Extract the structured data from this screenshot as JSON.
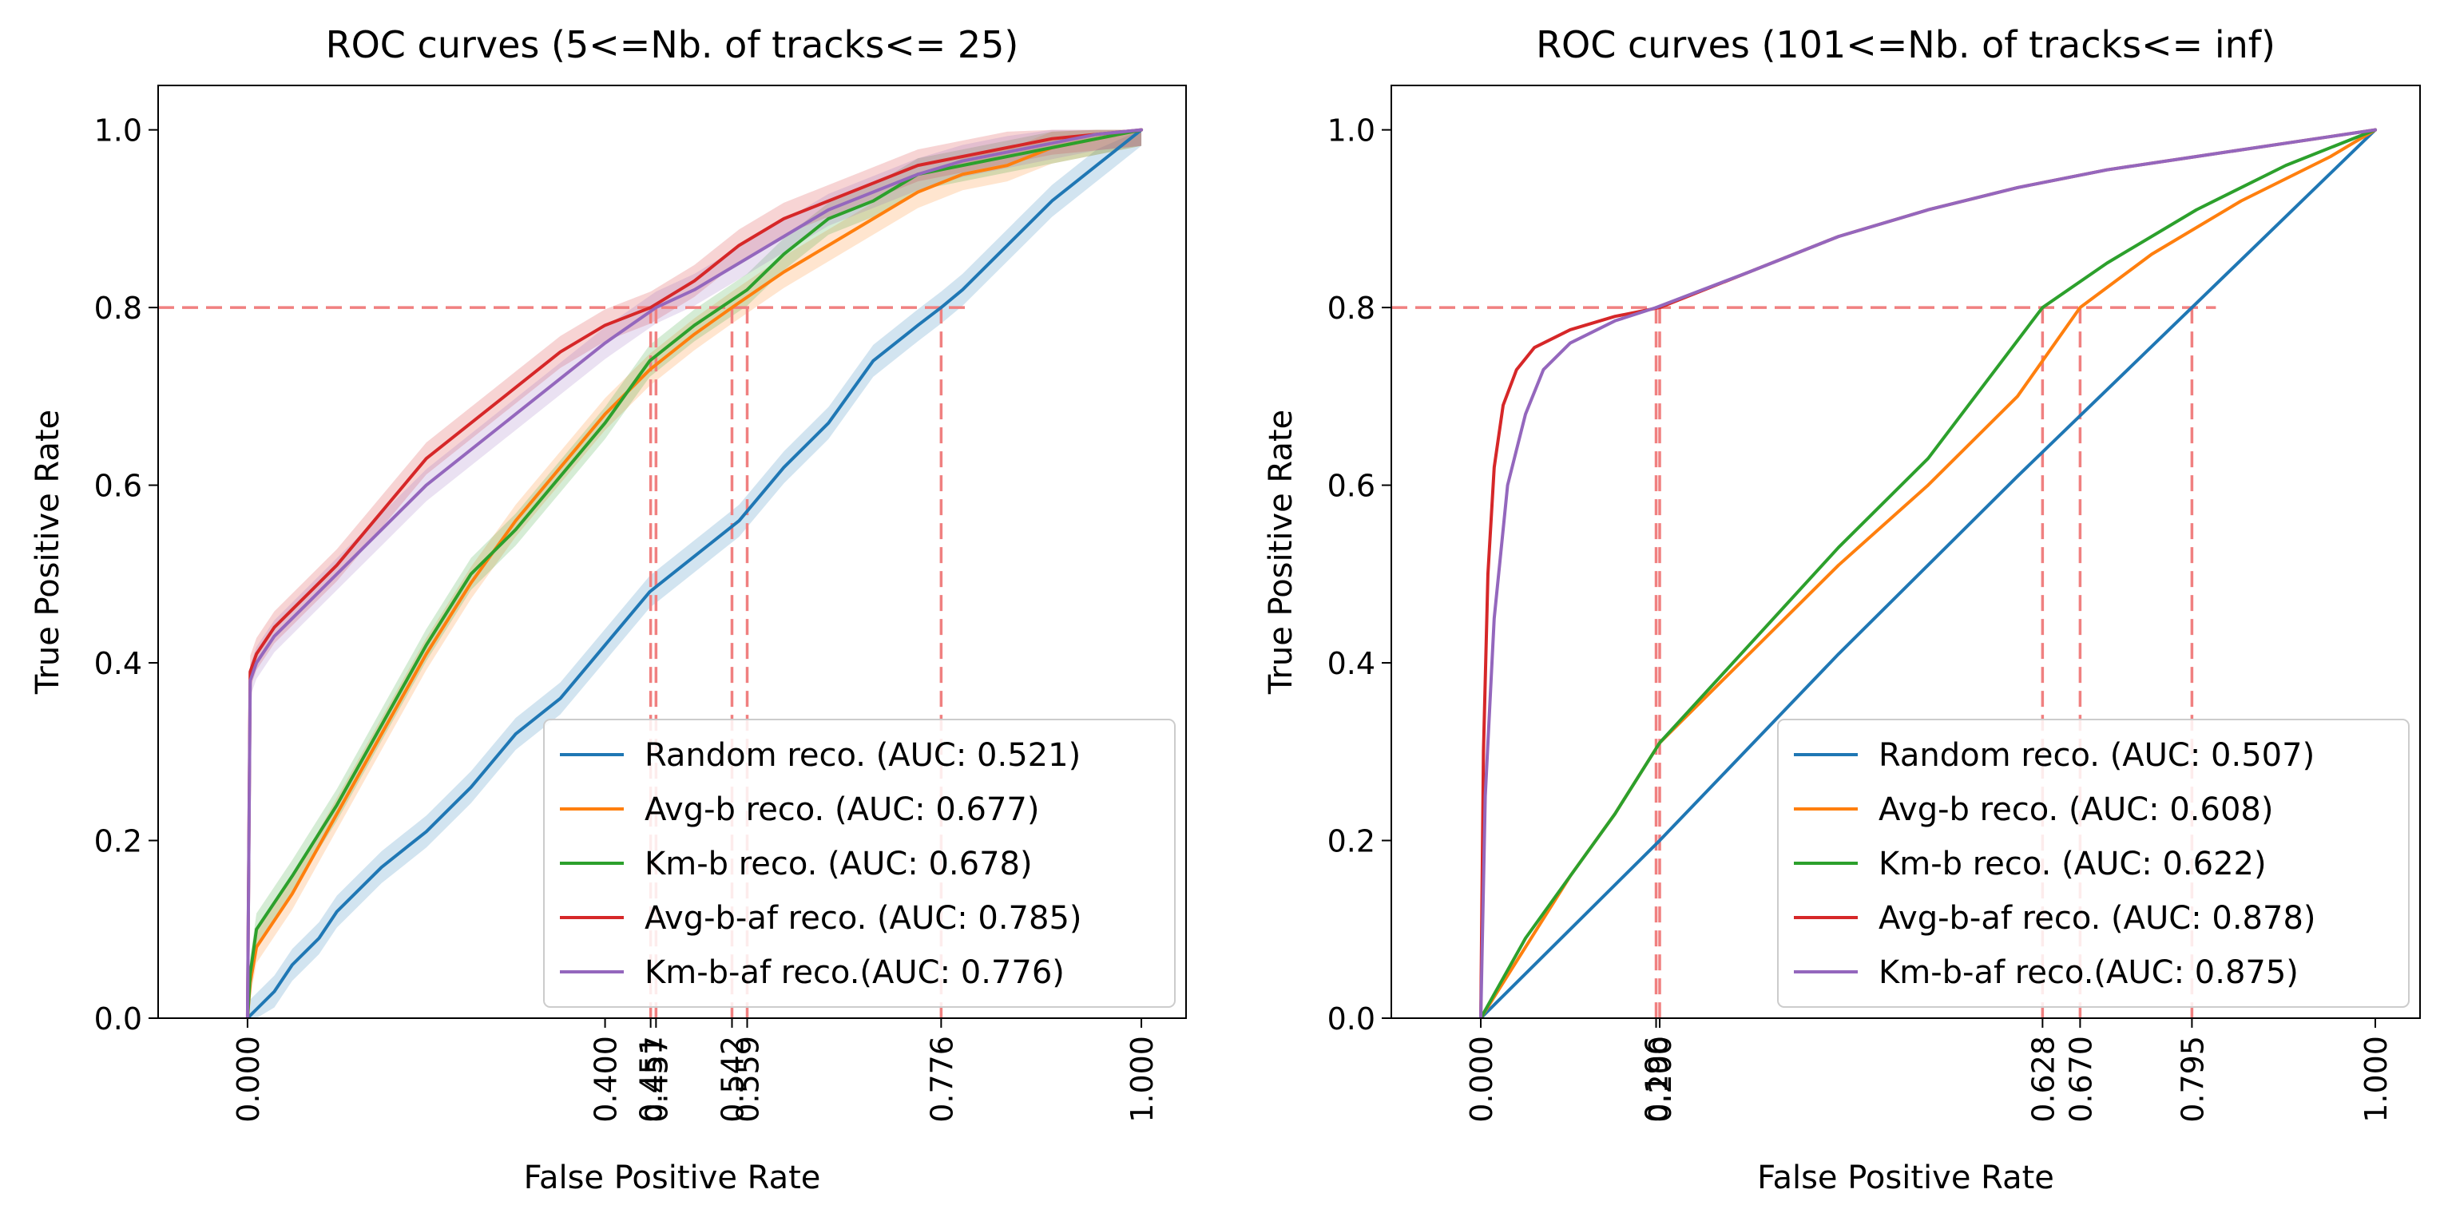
{
  "chart_data": [
    {
      "type": "line",
      "title": "ROC curves (5<=Nb. of tracks<= 25)",
      "xlabel": "False Positive Rate",
      "ylabel": "True Positive Rate",
      "xlim": [
        -0.1,
        1.05
      ],
      "ylim": [
        0.0,
        1.05
      ],
      "yticks": [
        0.0,
        0.2,
        0.4,
        0.6,
        0.8,
        1.0
      ],
      "ytick_labels": [
        "0.0",
        "0.2",
        "0.4",
        "0.6",
        "0.8",
        "1.0"
      ],
      "xticks": [
        0.0,
        0.4,
        0.451,
        0.457,
        0.542,
        0.559,
        0.776,
        1.0
      ],
      "xtick_labels": [
        "0.000",
        "0.400",
        "0.451",
        "0.457",
        "0.542",
        "0.559",
        "0.776",
        "1.000"
      ],
      "threshold_tpr": 0.8,
      "threshold_fpr": [
        0.451,
        0.457,
        0.542,
        0.559,
        0.776
      ],
      "legend_position": "lower-right",
      "band": true,
      "series": [
        {
          "name": "Random reco. (AUC: 0.521)",
          "color": "#1f77b4",
          "x": [
            0,
            0.005,
            0.01,
            0.03,
            0.05,
            0.08,
            0.1,
            0.15,
            0.2,
            0.25,
            0.3,
            0.35,
            0.4,
            0.45,
            0.5,
            0.55,
            0.6,
            0.65,
            0.7,
            0.75,
            0.776,
            0.8,
            0.85,
            0.9,
            0.95,
            1.0
          ],
          "y": [
            0,
            0.005,
            0.01,
            0.03,
            0.06,
            0.09,
            0.12,
            0.17,
            0.21,
            0.26,
            0.32,
            0.36,
            0.42,
            0.48,
            0.52,
            0.56,
            0.62,
            0.67,
            0.74,
            0.78,
            0.8,
            0.82,
            0.87,
            0.92,
            0.96,
            1.0
          ]
        },
        {
          "name": "Avg-b reco. (AUC: 0.677)",
          "color": "#ff7f0e",
          "x": [
            0,
            0.003,
            0.01,
            0.05,
            0.1,
            0.15,
            0.2,
            0.25,
            0.3,
            0.35,
            0.4,
            0.45,
            0.5,
            0.542,
            0.6,
            0.65,
            0.7,
            0.75,
            0.8,
            0.85,
            0.9,
            0.95,
            1.0
          ],
          "y": [
            0,
            0.04,
            0.08,
            0.14,
            0.23,
            0.32,
            0.41,
            0.49,
            0.56,
            0.62,
            0.68,
            0.73,
            0.77,
            0.8,
            0.84,
            0.87,
            0.9,
            0.93,
            0.95,
            0.96,
            0.98,
            0.99,
            1.0
          ]
        },
        {
          "name": "Km-b reco. (AUC: 0.678)",
          "color": "#2ca02c",
          "x": [
            0,
            0.003,
            0.01,
            0.05,
            0.1,
            0.15,
            0.2,
            0.25,
            0.3,
            0.35,
            0.4,
            0.45,
            0.5,
            0.559,
            0.6,
            0.65,
            0.7,
            0.75,
            0.8,
            0.85,
            0.9,
            0.95,
            1.0
          ],
          "y": [
            0,
            0.05,
            0.1,
            0.16,
            0.24,
            0.33,
            0.42,
            0.5,
            0.55,
            0.61,
            0.67,
            0.74,
            0.78,
            0.82,
            0.86,
            0.9,
            0.92,
            0.95,
            0.96,
            0.97,
            0.98,
            0.99,
            1.0
          ]
        },
        {
          "name": "Avg-b-af reco. (AUC: 0.785)",
          "color": "#d62728",
          "x": [
            0,
            0.003,
            0.01,
            0.03,
            0.05,
            0.1,
            0.15,
            0.2,
            0.25,
            0.3,
            0.35,
            0.4,
            0.451,
            0.5,
            0.55,
            0.6,
            0.65,
            0.7,
            0.75,
            0.8,
            0.85,
            0.9,
            0.95,
            1.0
          ],
          "y": [
            0,
            0.39,
            0.41,
            0.44,
            0.46,
            0.51,
            0.57,
            0.63,
            0.67,
            0.71,
            0.75,
            0.78,
            0.8,
            0.83,
            0.87,
            0.9,
            0.92,
            0.94,
            0.96,
            0.97,
            0.98,
            0.99,
            0.995,
            1.0
          ]
        },
        {
          "name": "Km-b-af reco.(AUC: 0.776)",
          "color": "#9467bd",
          "x": [
            0,
            0.003,
            0.01,
            0.03,
            0.05,
            0.1,
            0.15,
            0.2,
            0.25,
            0.3,
            0.35,
            0.4,
            0.457,
            0.5,
            0.55,
            0.6,
            0.65,
            0.7,
            0.75,
            0.8,
            0.85,
            0.9,
            0.95,
            1.0
          ],
          "y": [
            0,
            0.38,
            0.4,
            0.43,
            0.45,
            0.5,
            0.55,
            0.6,
            0.64,
            0.68,
            0.72,
            0.76,
            0.8,
            0.82,
            0.85,
            0.88,
            0.91,
            0.93,
            0.95,
            0.965,
            0.975,
            0.985,
            0.995,
            1.0
          ]
        }
      ]
    },
    {
      "type": "line",
      "title": "ROC curves (101<=Nb. of tracks<= inf)",
      "xlabel": "False Positive Rate",
      "ylabel": "True Positive Rate",
      "xlim": [
        -0.1,
        1.05
      ],
      "ylim": [
        0.0,
        1.05
      ],
      "yticks": [
        0.0,
        0.2,
        0.4,
        0.6,
        0.8,
        1.0
      ],
      "ytick_labels": [
        "0.0",
        "0.2",
        "0.4",
        "0.6",
        "0.8",
        "1.0"
      ],
      "xticks": [
        0.0,
        0.196,
        0.2,
        0.628,
        0.67,
        0.795,
        1.0
      ],
      "xtick_labels": [
        "0.000",
        "0.196",
        "0.200",
        "0.628",
        "0.670",
        "0.795",
        "1.000"
      ],
      "threshold_tpr": 0.8,
      "threshold_fpr": [
        0.196,
        0.2,
        0.628,
        0.67,
        0.795
      ],
      "legend_position": "lower-right",
      "band": false,
      "series": [
        {
          "name": "Random reco. (AUC: 0.507)",
          "color": "#1f77b4",
          "x": [
            0,
            0.2,
            0.4,
            0.6,
            0.795,
            1.0
          ],
          "y": [
            0,
            0.2,
            0.41,
            0.61,
            0.8,
            1.0
          ]
        },
        {
          "name": "Avg-b reco. (AUC: 0.608)",
          "color": "#ff7f0e",
          "x": [
            0,
            0.05,
            0.1,
            0.15,
            0.2,
            0.3,
            0.4,
            0.5,
            0.6,
            0.67,
            0.75,
            0.85,
            0.95,
            1.0
          ],
          "y": [
            0,
            0.08,
            0.16,
            0.23,
            0.31,
            0.41,
            0.51,
            0.6,
            0.7,
            0.8,
            0.86,
            0.92,
            0.97,
            1.0
          ]
        },
        {
          "name": "Km-b reco. (AUC: 0.622)",
          "color": "#2ca02c",
          "x": [
            0,
            0.05,
            0.1,
            0.15,
            0.2,
            0.3,
            0.4,
            0.5,
            0.628,
            0.7,
            0.8,
            0.9,
            1.0
          ],
          "y": [
            0,
            0.09,
            0.16,
            0.23,
            0.31,
            0.42,
            0.53,
            0.63,
            0.8,
            0.85,
            0.91,
            0.96,
            1.0
          ]
        },
        {
          "name": "Avg-b-af reco. (AUC: 0.878)",
          "color": "#d62728",
          "x": [
            0,
            0.003,
            0.008,
            0.015,
            0.025,
            0.04,
            0.06,
            0.1,
            0.15,
            0.2,
            0.3,
            0.4,
            0.5,
            0.6,
            0.7,
            0.8,
            0.9,
            1.0
          ],
          "y": [
            0,
            0.3,
            0.5,
            0.62,
            0.69,
            0.73,
            0.755,
            0.775,
            0.79,
            0.8,
            0.84,
            0.88,
            0.91,
            0.935,
            0.955,
            0.97,
            0.985,
            1.0
          ]
        },
        {
          "name": "Km-b-af reco.(AUC: 0.875)",
          "color": "#9467bd",
          "x": [
            0,
            0.005,
            0.015,
            0.03,
            0.05,
            0.07,
            0.1,
            0.15,
            0.196,
            0.3,
            0.4,
            0.5,
            0.6,
            0.7,
            0.8,
            0.9,
            1.0
          ],
          "y": [
            0,
            0.25,
            0.45,
            0.6,
            0.68,
            0.73,
            0.76,
            0.785,
            0.8,
            0.84,
            0.88,
            0.91,
            0.935,
            0.955,
            0.97,
            0.985,
            1.0
          ]
        }
      ]
    }
  ]
}
